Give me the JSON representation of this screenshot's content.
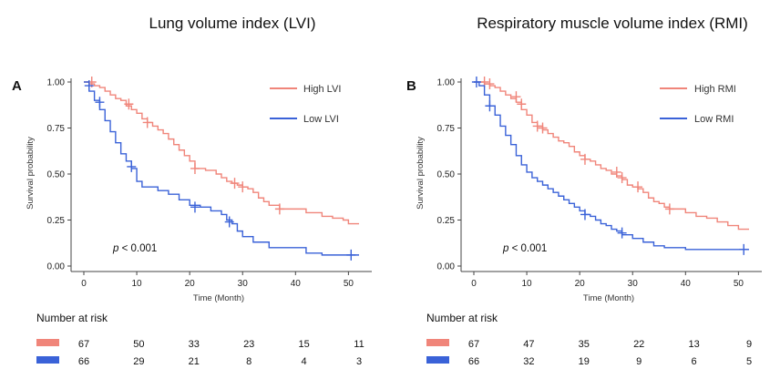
{
  "colors": {
    "high": "#f0857a",
    "low": "#3a62d8",
    "axis": "#444444"
  },
  "panels": [
    {
      "key": "lvi",
      "title": "Lung volume index (LVI)",
      "letter": "A",
      "ylabel": "Survival probability",
      "xlabel": "Time (Month)",
      "pvalue_italic": "p",
      "pvalue_rest": " < 0.001",
      "legend": {
        "high": "High LVI",
        "low": "Low LVI"
      },
      "risk_title": "Number at risk",
      "risk_high": [
        "67",
        "50",
        "33",
        "23",
        "15",
        "11"
      ],
      "risk_low": [
        "66",
        "29",
        "21",
        "8",
        "4",
        "3"
      ]
    },
    {
      "key": "rmi",
      "title": "Respiratory muscle volume index (RMI)",
      "letter": "B",
      "ylabel": "Survival probability",
      "xlabel": "Time (Month)",
      "pvalue_italic": "p",
      "pvalue_rest": " < 0.001",
      "legend": {
        "high": "High RMI",
        "low": "Low RMI"
      },
      "risk_title": "Number at risk",
      "risk_high": [
        "67",
        "47",
        "35",
        "22",
        "13",
        "9"
      ],
      "risk_low": [
        "66",
        "32",
        "19",
        "9",
        "6",
        "5"
      ]
    }
  ],
  "chart_data": [
    {
      "type": "line",
      "subtype": "kaplan-meier step",
      "title": "Lung volume index (LVI)",
      "xlabel": "Time (Month)",
      "ylabel": "Survival probability",
      "xlim": [
        0,
        52
      ],
      "ylim": [
        0,
        1
      ],
      "xticks": [
        "0",
        "10",
        "20",
        "30",
        "40",
        "50"
      ],
      "yticks": [
        "0.00",
        "0.25",
        "0.50",
        "0.75",
        "1.00"
      ],
      "series": [
        {
          "name": "High LVI",
          "color": "high",
          "x": [
            0,
            1,
            2,
            3,
            4,
            5,
            6,
            7,
            8,
            9,
            10,
            11,
            12,
            13,
            14,
            15,
            16,
            17,
            18,
            19,
            20,
            21,
            22,
            23,
            25,
            26,
            27,
            28,
            29,
            30,
            31,
            32,
            33,
            34,
            35,
            37,
            40,
            42,
            45,
            47,
            49,
            50,
            52
          ],
          "y": [
            1.0,
            0.99,
            0.98,
            0.97,
            0.95,
            0.93,
            0.91,
            0.9,
            0.87,
            0.85,
            0.83,
            0.8,
            0.78,
            0.76,
            0.74,
            0.72,
            0.69,
            0.66,
            0.63,
            0.6,
            0.57,
            0.53,
            0.53,
            0.52,
            0.5,
            0.48,
            0.46,
            0.45,
            0.44,
            0.43,
            0.42,
            0.4,
            0.37,
            0.35,
            0.33,
            0.31,
            0.31,
            0.29,
            0.27,
            0.26,
            0.25,
            0.23,
            0.23
          ],
          "censors": [
            [
              1.5,
              1.0
            ],
            [
              8.5,
              0.88
            ],
            [
              12,
              0.78
            ],
            [
              21,
              0.53
            ],
            [
              28.5,
              0.45
            ],
            [
              30,
              0.43
            ],
            [
              37,
              0.31
            ]
          ]
        },
        {
          "name": "Low LVI",
          "color": "low",
          "x": [
            0,
            1,
            2,
            3,
            4,
            5,
            6,
            7,
            8,
            9,
            10,
            11,
            12,
            14,
            16,
            18,
            20,
            22,
            24,
            26,
            27,
            28,
            29,
            30,
            32,
            35,
            38,
            40,
            42,
            45,
            50,
            52
          ],
          "y": [
            1.0,
            0.95,
            0.9,
            0.85,
            0.79,
            0.73,
            0.67,
            0.61,
            0.57,
            0.53,
            0.46,
            0.43,
            0.43,
            0.41,
            0.39,
            0.36,
            0.33,
            0.32,
            0.3,
            0.28,
            0.25,
            0.23,
            0.19,
            0.16,
            0.13,
            0.1,
            0.1,
            0.1,
            0.07,
            0.06,
            0.06,
            0.06
          ],
          "censors": [
            [
              1,
              0.98
            ],
            [
              3,
              0.89
            ],
            [
              9,
              0.54
            ],
            [
              21,
              0.32
            ],
            [
              27.5,
              0.24
            ],
            [
              50.5,
              0.06
            ]
          ]
        }
      ],
      "annotation": "p < 0.001",
      "risk_table": {
        "times": [
          0,
          10,
          20,
          30,
          40,
          50
        ],
        "High LVI": [
          67,
          50,
          33,
          23,
          15,
          11
        ],
        "Low LVI": [
          66,
          29,
          21,
          8,
          4,
          3
        ]
      }
    },
    {
      "type": "line",
      "subtype": "kaplan-meier step",
      "title": "Respiratory muscle volume index (RMI)",
      "xlabel": "Time (Month)",
      "ylabel": "Survival probability",
      "xlim": [
        0,
        52
      ],
      "ylim": [
        0,
        1
      ],
      "xticks": [
        "0",
        "10",
        "20",
        "30",
        "40",
        "50"
      ],
      "yticks": [
        "0.00",
        "0.25",
        "0.50",
        "0.75",
        "1.00"
      ],
      "series": [
        {
          "name": "High RMI",
          "color": "high",
          "x": [
            0,
            1,
            2,
            3,
            4,
            5,
            6,
            7,
            8,
            9,
            10,
            11,
            12,
            13,
            14,
            15,
            16,
            17,
            18,
            19,
            20,
            21,
            22,
            23,
            24,
            25,
            26,
            27,
            28,
            29,
            30,
            31,
            32,
            33,
            34,
            35,
            36,
            37,
            38,
            40,
            42,
            44,
            46,
            48,
            50,
            52
          ],
          "y": [
            1.0,
            1.0,
            0.99,
            0.98,
            0.97,
            0.95,
            0.93,
            0.91,
            0.89,
            0.85,
            0.82,
            0.78,
            0.76,
            0.74,
            0.72,
            0.7,
            0.68,
            0.67,
            0.65,
            0.62,
            0.6,
            0.58,
            0.57,
            0.55,
            0.53,
            0.52,
            0.5,
            0.49,
            0.47,
            0.44,
            0.43,
            0.42,
            0.4,
            0.37,
            0.35,
            0.34,
            0.32,
            0.31,
            0.31,
            0.29,
            0.27,
            0.26,
            0.24,
            0.22,
            0.2,
            0.2
          ],
          "censors": [
            [
              2,
              1.0
            ],
            [
              3,
              0.99
            ],
            [
              8,
              0.92
            ],
            [
              9,
              0.88
            ],
            [
              12,
              0.76
            ],
            [
              13,
              0.75
            ],
            [
              21,
              0.58
            ],
            [
              27,
              0.51
            ],
            [
              28,
              0.48
            ],
            [
              31,
              0.43
            ],
            [
              37,
              0.31
            ]
          ]
        },
        {
          "name": "Low RMI",
          "color": "low",
          "x": [
            0,
            1,
            2,
            3,
            4,
            5,
            6,
            7,
            8,
            9,
            10,
            11,
            12,
            13,
            14,
            15,
            16,
            17,
            18,
            19,
            20,
            21,
            22,
            23,
            24,
            25,
            26,
            27,
            28,
            30,
            32,
            34,
            36,
            40,
            45,
            50,
            52
          ],
          "y": [
            1.0,
            0.98,
            0.93,
            0.87,
            0.82,
            0.76,
            0.71,
            0.66,
            0.6,
            0.55,
            0.51,
            0.48,
            0.46,
            0.44,
            0.42,
            0.4,
            0.38,
            0.36,
            0.34,
            0.32,
            0.3,
            0.28,
            0.27,
            0.25,
            0.23,
            0.22,
            0.2,
            0.19,
            0.17,
            0.15,
            0.13,
            0.11,
            0.1,
            0.09,
            0.09,
            0.09,
            0.09
          ],
          "censors": [
            [
              0.5,
              1.0
            ],
            [
              3,
              0.87
            ],
            [
              21,
              0.28
            ],
            [
              28,
              0.18
            ],
            [
              51,
              0.09
            ]
          ]
        }
      ],
      "annotation": "p < 0.001",
      "risk_table": {
        "times": [
          0,
          10,
          20,
          30,
          40,
          50
        ],
        "High RMI": [
          67,
          47,
          35,
          22,
          13,
          9
        ],
        "Low RMI": [
          66,
          32,
          19,
          9,
          6,
          5
        ]
      }
    }
  ]
}
